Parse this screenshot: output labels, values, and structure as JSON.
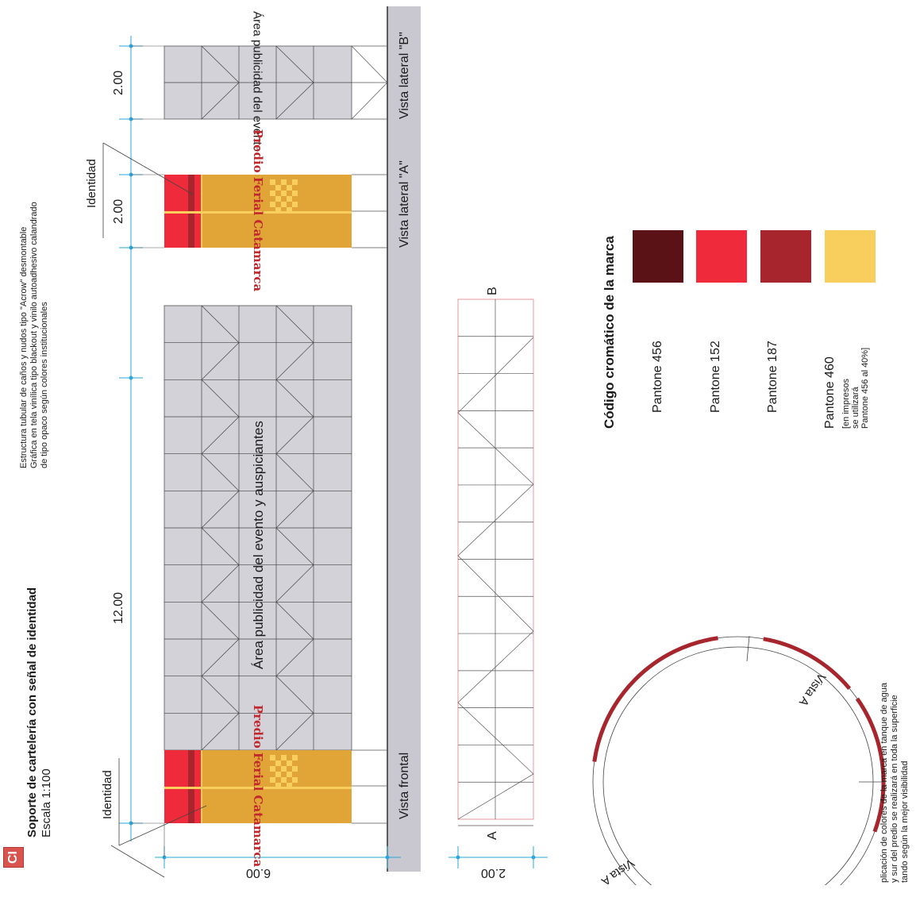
{
  "header": {
    "logo": "CI",
    "title": "Soporte de cartelería con señal de identidad",
    "scale": "Escala 1:100",
    "description": [
      "Estructura tubular de caños y nudos  tipo \"Acrow\" desmontable",
      "Gráfica en tela vinílica tipo blackout y vinilo autoadhesivo calandrado",
      "de tipo opaco según colores institucionales"
    ]
  },
  "dimensions": {
    "front_width": "12.00",
    "height": "6.00",
    "side_a_width": "2.00",
    "side_b_width": "2.00",
    "plan_depth": "2.00"
  },
  "views": {
    "front": "Vista frontal",
    "side_a": "Vista lateral \"A\"",
    "side_b": "Vista lateral \"B\""
  },
  "areas": {
    "main": "Área publicidad del evento y auspiciantes",
    "side_b": "Área publicidad del evento"
  },
  "identity_label": "Identidad",
  "brand_text": "Predio Ferial Catamarca",
  "plan": {
    "label_a": "A",
    "label_b": "B"
  },
  "palette": {
    "title": "Código cromático de la marca",
    "swatches": [
      {
        "name": "Pantone 456",
        "color": "#5a1217"
      },
      {
        "name": "Pantone 152",
        "color": "#ef2b3b"
      },
      {
        "name": "Pantone 187",
        "color": "#a7262d"
      },
      {
        "name": "Pantone 460",
        "color": "#f8ce5c",
        "note": [
          "[en impresos",
          "se utilizará",
          "Pantone 456 al 40%]"
        ]
      }
    ]
  },
  "tank": {
    "vista_a_1": "Vista A",
    "vista_a_2": "Vista A",
    "note": [
      "plicación de colores de la marca en tanque de agua",
      "y sur del predio se realizará en toda la superficie",
      "tando según la mejor visibilidad"
    ]
  },
  "colors": {
    "panel_gray": "#d4d2d9",
    "floor_gray": "#c9c7cf",
    "dim_blue": "#2aa7dc",
    "sign_gold": "#e0a437",
    "sign_red": "#ef2b3b",
    "sign_maroon": "#a7262d",
    "tank_red": "#a7262d"
  }
}
